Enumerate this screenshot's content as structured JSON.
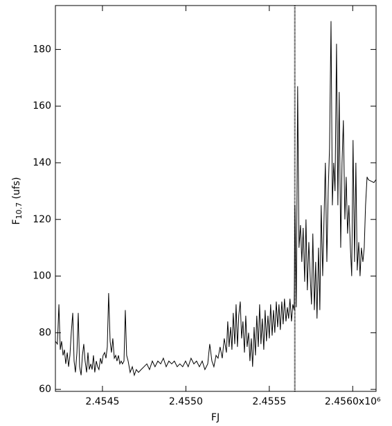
{
  "chart_data": {
    "type": "line",
    "xlabel": "FJ",
    "ylabel": [
      "F",
      "10.7",
      " (ufs)"
    ],
    "color": "#000000",
    "xlim": [
      2454218,
      2456140
    ],
    "ylim": [
      59.3,
      195.5
    ],
    "xticks": [
      {
        "value": 2454500,
        "label": "2.4545"
      },
      {
        "value": 2455000,
        "label": "2.4550"
      },
      {
        "value": 2455500,
        "label": "2.4555"
      },
      {
        "value": 2456000,
        "label": "2.4560x10⁶"
      }
    ],
    "yticks": [
      60,
      80,
      100,
      120,
      140,
      160,
      180
    ],
    "vline_x": 2455653,
    "x": [
      2454218,
      2454230,
      2454239,
      2454247,
      2454255,
      2454264,
      2454272,
      2454280,
      2454289,
      2454297,
      2454305,
      2454313,
      2454322,
      2454330,
      2454338,
      2454347,
      2454355,
      2454363,
      2454372,
      2454380,
      2454388,
      2454396,
      2454405,
      2454413,
      2454421,
      2454430,
      2454438,
      2454446,
      2454454,
      2454463,
      2454471,
      2454479,
      2454488,
      2454496,
      2454504,
      2454513,
      2454521,
      2454529,
      2454537,
      2454546,
      2454554,
      2454562,
      2454571,
      2454579,
      2454587,
      2454596,
      2454604,
      2454612,
      2454620,
      2454629,
      2454637,
      2454645,
      2454654,
      2454666,
      2454679,
      2454691,
      2454703,
      2454716,
      2454732,
      2454749,
      2454766,
      2454782,
      2454799,
      2454815,
      2454832,
      2454849,
      2454865,
      2454882,
      2454898,
      2454915,
      2454931,
      2454948,
      2454964,
      2454981,
      2454998,
      2455014,
      2455031,
      2455048,
      2455064,
      2455081,
      2455098,
      2455114,
      2455131,
      2455143,
      2455156,
      2455168,
      2455181,
      2455193,
      2455205,
      2455218,
      2455230,
      2455243,
      2455251,
      2455259,
      2455268,
      2455276,
      2455284,
      2455293,
      2455301,
      2455309,
      2455317,
      2455326,
      2455334,
      2455342,
      2455351,
      2455359,
      2455367,
      2455376,
      2455384,
      2455392,
      2455400,
      2455409,
      2455417,
      2455425,
      2455434,
      2455442,
      2455450,
      2455458,
      2455467,
      2455475,
      2455483,
      2455492,
      2455500,
      2455508,
      2455517,
      2455525,
      2455533,
      2455542,
      2455550,
      2455558,
      2455566,
      2455575,
      2455583,
      2455591,
      2455600,
      2455608,
      2455616,
      2455624,
      2455633,
      2455641,
      2455649,
      2455654,
      2455662,
      2455670,
      2455678,
      2455687,
      2455695,
      2455703,
      2455712,
      2455720,
      2455728,
      2455737,
      2455745,
      2455753,
      2455761,
      2455770,
      2455778,
      2455786,
      2455795,
      2455803,
      2455811,
      2455820,
      2455828,
      2455836,
      2455845,
      2455853,
      2455861,
      2455870,
      2455878,
      2455886,
      2455894,
      2455903,
      2455911,
      2455919,
      2455928,
      2455936,
      2455944,
      2455953,
      2455961,
      2455969,
      2455977,
      2455986,
      2455994,
      2456002,
      2456011,
      2456019,
      2456027,
      2456036,
      2456044,
      2456052,
      2456061,
      2456069,
      2456077,
      2456086,
      2456094,
      2456127,
      2456139
    ],
    "values": [
      77,
      76,
      90,
      74,
      77,
      72,
      74,
      69,
      73,
      68,
      72,
      80,
      87,
      70,
      66,
      73,
      87,
      68,
      65,
      72,
      76,
      70,
      66,
      73,
      67,
      69,
      67,
      72,
      66,
      70,
      68,
      67,
      71,
      69,
      72,
      73,
      71,
      75,
      94,
      77,
      73,
      78,
      71,
      72,
      70,
      72,
      69,
      70,
      69,
      70,
      88,
      72,
      70,
      66,
      68,
      65,
      67,
      66,
      67,
      68,
      69,
      67,
      70,
      68,
      70,
      69,
      71,
      68,
      70,
      69,
      70,
      68,
      69,
      68,
      70,
      68,
      71,
      69,
      70,
      68,
      70,
      67,
      69,
      76,
      70,
      68,
      72,
      71,
      75,
      71,
      78,
      73,
      84,
      75,
      82,
      74,
      87,
      76,
      90,
      75,
      86,
      91,
      78,
      84,
      73,
      86,
      75,
      80,
      70,
      78,
      68,
      82,
      72,
      86,
      75,
      90,
      76,
      85,
      74,
      88,
      77,
      86,
      78,
      90,
      79,
      88,
      80,
      91,
      82,
      90,
      81,
      91,
      83,
      92,
      84,
      89,
      85,
      92,
      84,
      90,
      88,
      125,
      89,
      167,
      110,
      118,
      105,
      117,
      98,
      120,
      95,
      112,
      100,
      90,
      115,
      88,
      105,
      85,
      110,
      88,
      125,
      100,
      120,
      140,
      105,
      130,
      145,
      190,
      125,
      140,
      130,
      182,
      125,
      165,
      110,
      140,
      155,
      120,
      135,
      115,
      125,
      110,
      100,
      148,
      105,
      140,
      102,
      112,
      100,
      110,
      105,
      110,
      125,
      135,
      134,
      133,
      134
    ]
  }
}
